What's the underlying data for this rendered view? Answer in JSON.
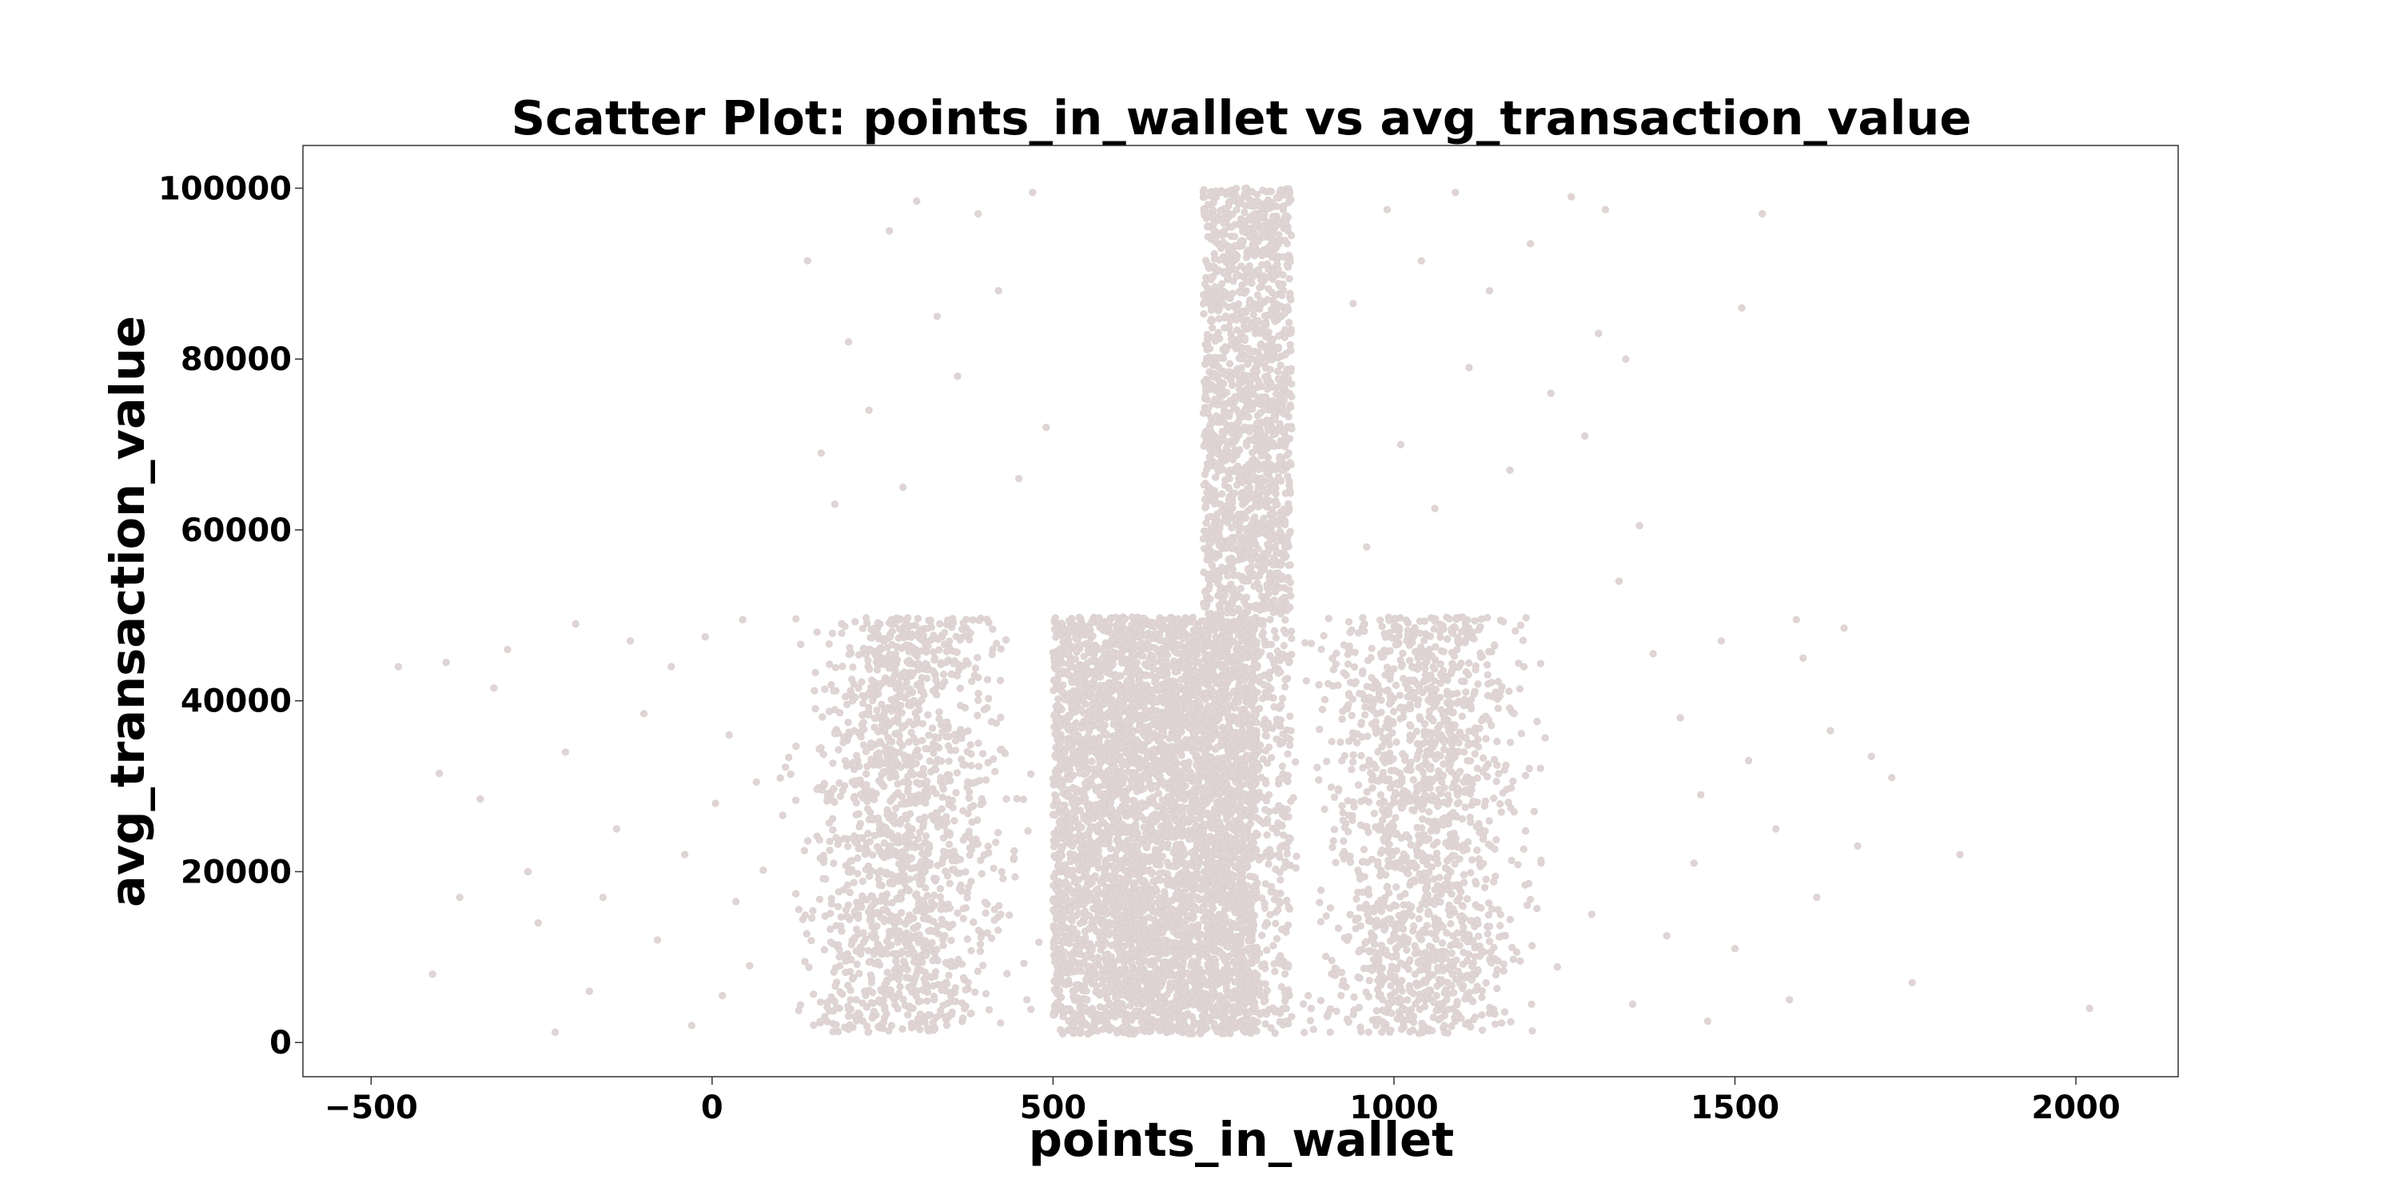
{
  "chart_data": {
    "type": "scatter",
    "title": "Scatter Plot: points_in_wallet vs avg_transaction_value",
    "xlabel": "points_in_wallet",
    "ylabel": "avg_transaction_value",
    "xlim": [
      -600,
      2150
    ],
    "ylim": [
      -4000,
      105000
    ],
    "xticks": [
      -500,
      0,
      500,
      1000,
      1500,
      2000
    ],
    "yticks": [
      0,
      20000,
      40000,
      60000,
      80000,
      100000
    ],
    "xtick_labels": [
      "−500",
      "0",
      "500",
      "1000",
      "1500",
      "2000"
    ],
    "ytick_labels": [
      "0",
      "20000",
      "40000",
      "60000",
      "80000",
      "100000"
    ],
    "grid": false,
    "legend": "none",
    "marker_color": "#e0d4d4",
    "series": [
      {
        "points": [
          [
            -460,
            44000
          ],
          [
            -410,
            8000
          ],
          [
            -400,
            31500
          ],
          [
            -390,
            44500
          ],
          [
            -370,
            17000
          ],
          [
            -340,
            28500
          ],
          [
            -320,
            41500
          ],
          [
            -300,
            46000
          ],
          [
            -270,
            20000
          ],
          [
            -255,
            14000
          ],
          [
            -230,
            1200
          ],
          [
            -215,
            34000
          ],
          [
            -200,
            49000
          ],
          [
            -180,
            6000
          ],
          [
            -160,
            17000
          ],
          [
            -140,
            25000
          ],
          [
            -120,
            47000
          ],
          [
            -100,
            38500
          ],
          [
            -80,
            12000
          ],
          [
            -60,
            44000
          ],
          [
            -40,
            22000
          ],
          [
            -30,
            2000
          ],
          [
            -10,
            47500
          ],
          [
            5,
            28000
          ],
          [
            15,
            5500
          ],
          [
            25,
            36000
          ],
          [
            35,
            16500
          ],
          [
            45,
            49500
          ],
          [
            55,
            9000
          ],
          [
            65,
            30500
          ],
          [
            1380,
            45500
          ],
          [
            1400,
            12500
          ],
          [
            1420,
            38000
          ],
          [
            1440,
            21000
          ],
          [
            1460,
            2500
          ],
          [
            1480,
            47000
          ],
          [
            1500,
            11000
          ],
          [
            1510,
            86000
          ],
          [
            1520,
            33000
          ],
          [
            1540,
            97000
          ],
          [
            1560,
            25000
          ],
          [
            1580,
            5000
          ],
          [
            1600,
            45000
          ],
          [
            1620,
            17000
          ],
          [
            1640,
            36500
          ],
          [
            1660,
            48500
          ],
          [
            1680,
            23000
          ],
          [
            1700,
            33500
          ],
          [
            1730,
            31000
          ],
          [
            1760,
            7000
          ],
          [
            1830,
            22000
          ],
          [
            2020,
            4000
          ],
          [
            1590,
            49500
          ],
          [
            1450,
            29000
          ],
          [
            1360,
            60500
          ],
          [
            1340,
            80000
          ],
          [
            1330,
            54000
          ],
          [
            1310,
            97500
          ],
          [
            1290,
            15000
          ],
          [
            1350,
            4500
          ],
          [
            140,
            91500
          ],
          [
            160,
            69000
          ],
          [
            180,
            63000
          ],
          [
            200,
            82000
          ],
          [
            230,
            74000
          ],
          [
            260,
            95000
          ],
          [
            280,
            65000
          ],
          [
            300,
            98500
          ],
          [
            330,
            85000
          ],
          [
            360,
            78000
          ],
          [
            390,
            97000
          ],
          [
            420,
            88000
          ],
          [
            450,
            66000
          ],
          [
            470,
            99500
          ],
          [
            490,
            72000
          ],
          [
            940,
            86500
          ],
          [
            960,
            58000
          ],
          [
            990,
            97500
          ],
          [
            1010,
            70000
          ],
          [
            1040,
            91500
          ],
          [
            1060,
            62500
          ],
          [
            1090,
            99500
          ],
          [
            1110,
            79000
          ],
          [
            1140,
            88000
          ],
          [
            1170,
            67000
          ],
          [
            1200,
            93500
          ],
          [
            1230,
            76000
          ],
          [
            1260,
            99000
          ],
          [
            1280,
            71000
          ],
          [
            1300,
            83000
          ]
        ]
      }
    ]
  }
}
